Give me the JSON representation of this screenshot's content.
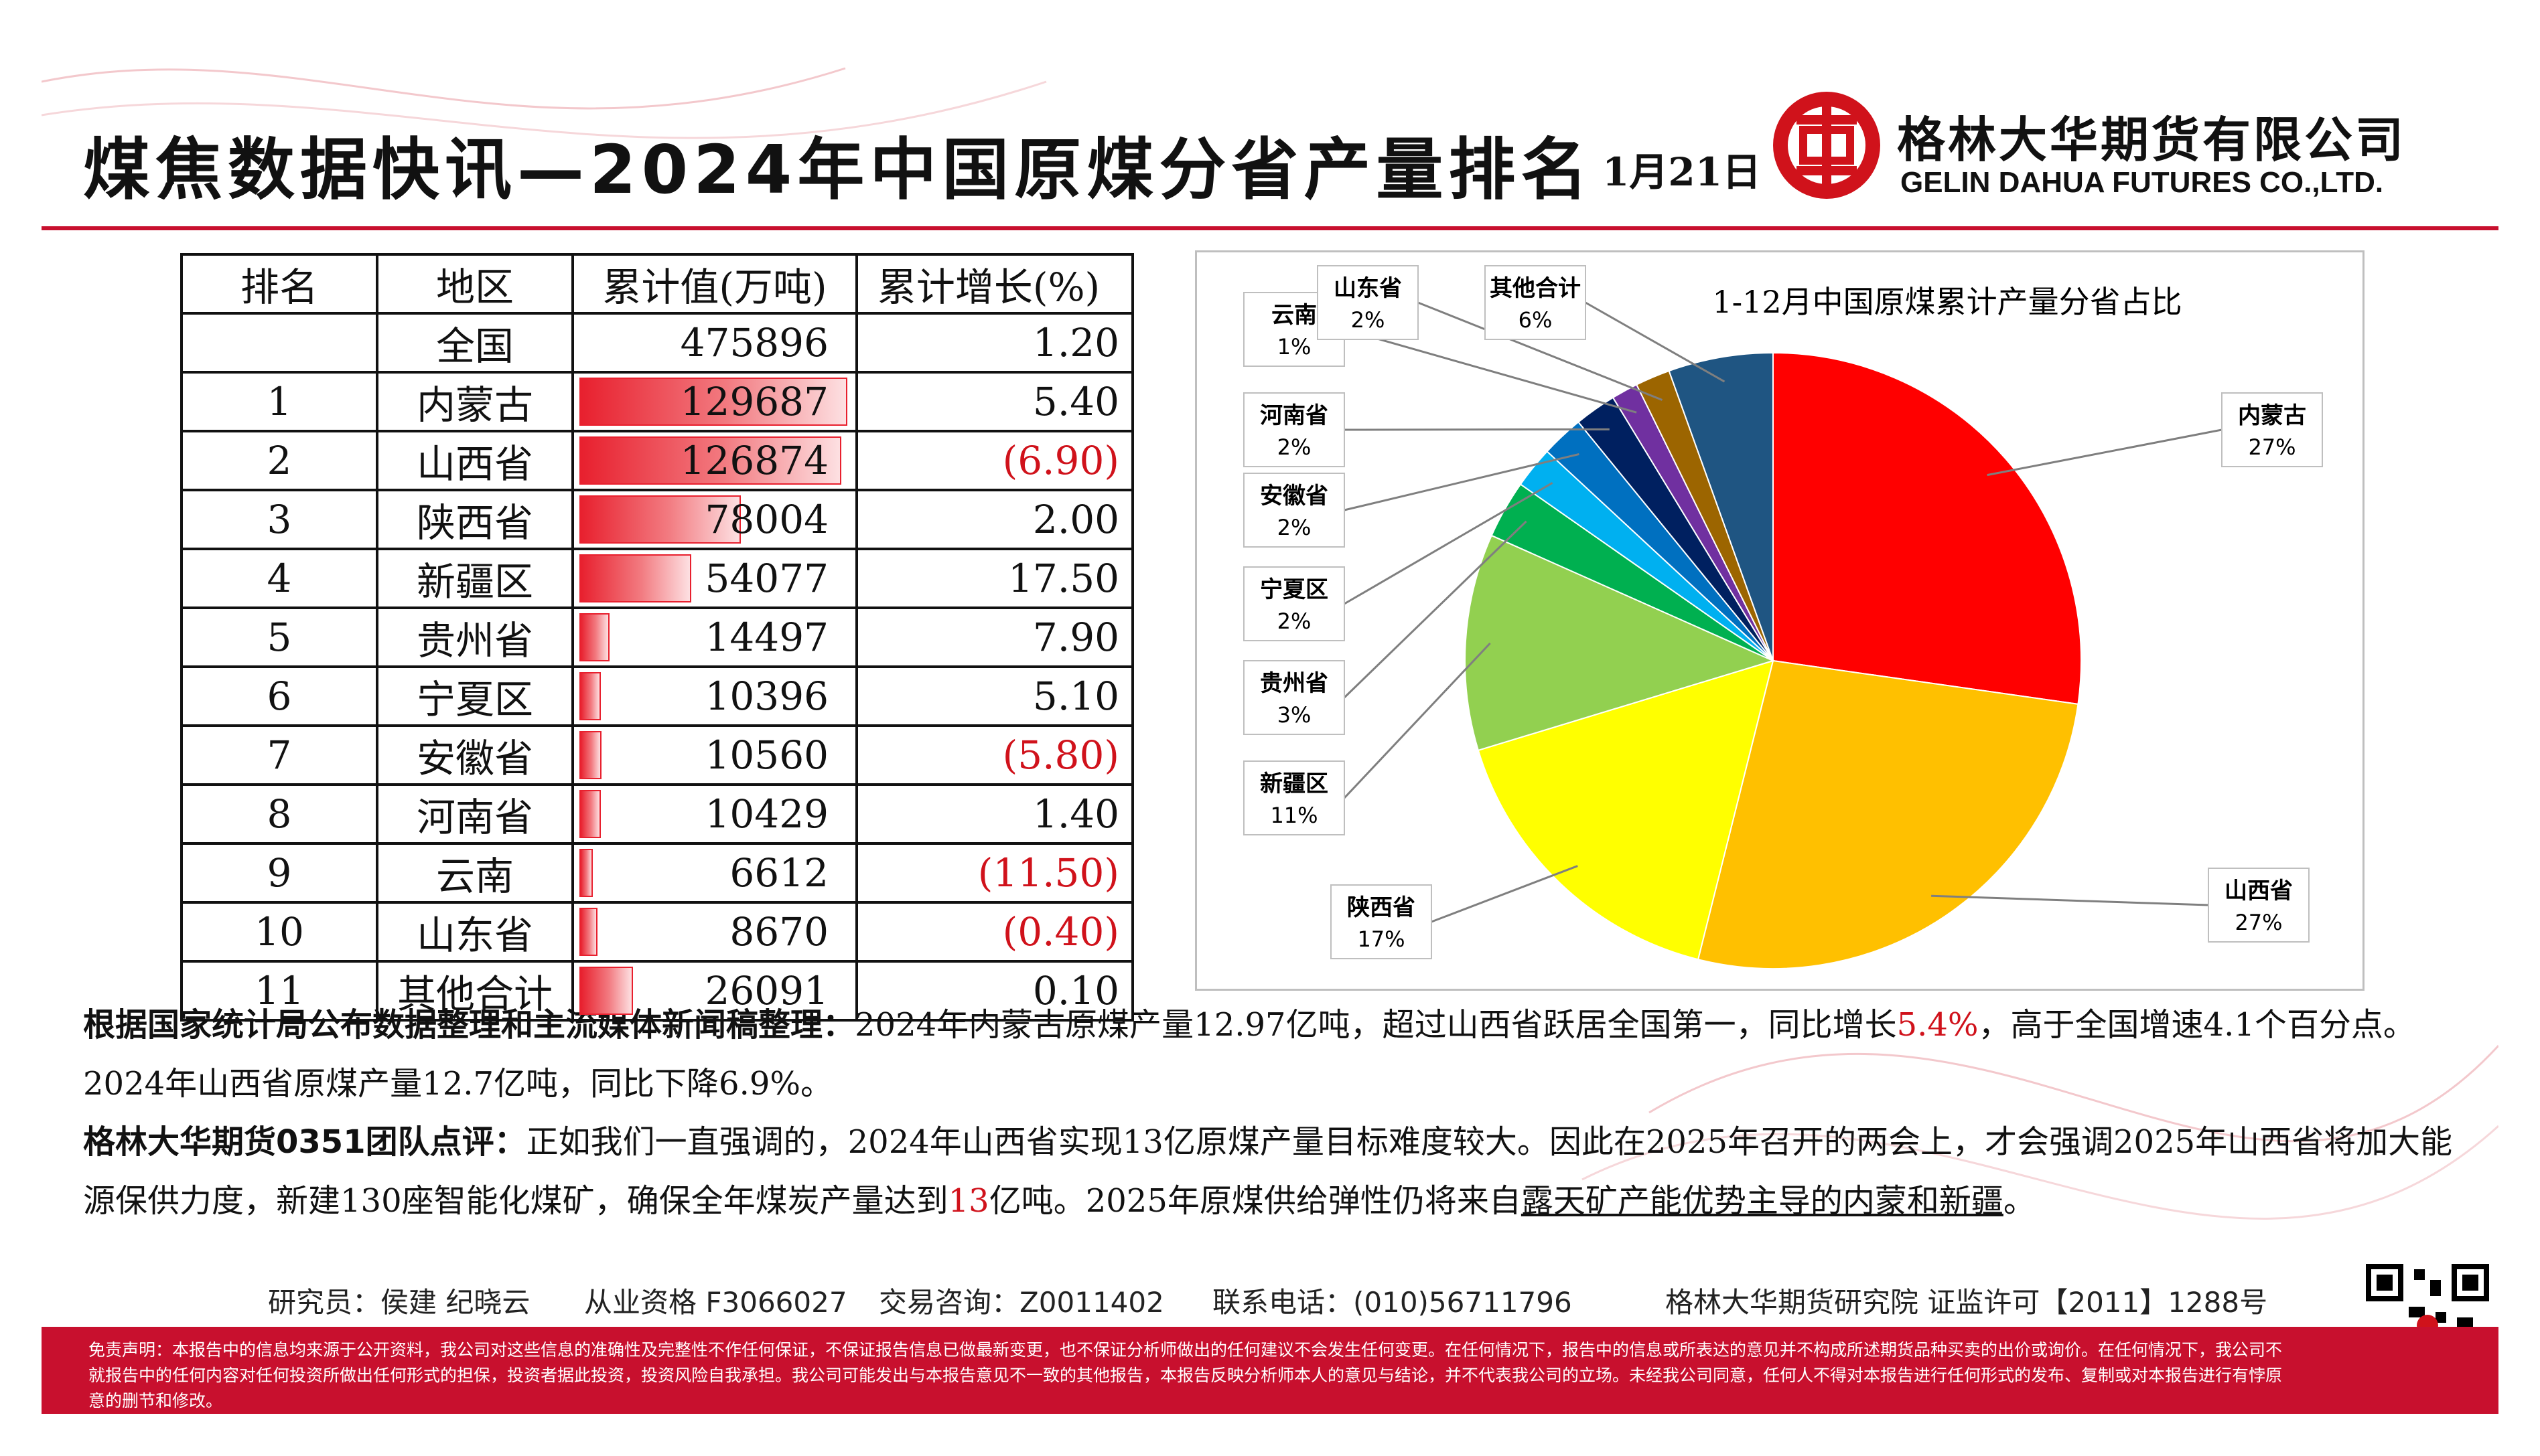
{
  "header": {
    "title": "煤焦数据快讯—2024年中国原煤分省产量排名",
    "date": "1月21日",
    "company_cn": "格林大华期货有限公司",
    "company_en": "GELIN DAHUA FUTURES CO.,LTD."
  },
  "table": {
    "headers": [
      "排名",
      "地区",
      "累计值(万吨)",
      "累计增长(%)"
    ],
    "rows": [
      {
        "rank": "",
        "region": "全国",
        "value": "475896",
        "growth": "1.20",
        "neg": false,
        "bar": 0
      },
      {
        "rank": "1",
        "region": "内蒙古",
        "value": "129687",
        "growth": "5.40",
        "neg": false,
        "bar": 129687
      },
      {
        "rank": "2",
        "region": "山西省",
        "value": "126874",
        "growth": "(6.90)",
        "neg": true,
        "bar": 126874
      },
      {
        "rank": "3",
        "region": "陕西省",
        "value": "78004",
        "growth": "2.00",
        "neg": false,
        "bar": 78004
      },
      {
        "rank": "4",
        "region": "新疆区",
        "value": "54077",
        "growth": "17.50",
        "neg": false,
        "bar": 54077
      },
      {
        "rank": "5",
        "region": "贵州省",
        "value": "14497",
        "growth": "7.90",
        "neg": false,
        "bar": 14497
      },
      {
        "rank": "6",
        "region": "宁夏区",
        "value": "10396",
        "growth": "5.10",
        "neg": false,
        "bar": 10396
      },
      {
        "rank": "7",
        "region": "安徽省",
        "value": "10560",
        "growth": "(5.80)",
        "neg": true,
        "bar": 10560
      },
      {
        "rank": "8",
        "region": "河南省",
        "value": "10429",
        "growth": "1.40",
        "neg": false,
        "bar": 10429
      },
      {
        "rank": "9",
        "region": "云南",
        "value": "6612",
        "growth": "(11.50)",
        "neg": true,
        "bar": 6612
      },
      {
        "rank": "10",
        "region": "山东省",
        "value": "8670",
        "growth": "(0.40)",
        "neg": true,
        "bar": 8670
      },
      {
        "rank": "11",
        "region": "其他合计",
        "value": "26091",
        "growth": "0.10",
        "neg": false,
        "bar": 26091
      }
    ]
  },
  "chart_data": {
    "type": "pie",
    "title": "1-12月中国原煤累计产量分省占比",
    "slices": [
      {
        "name": "内蒙古",
        "value": 129687,
        "label_pct": "27%",
        "color": "#ff0000"
      },
      {
        "name": "山西省",
        "value": 126874,
        "label_pct": "27%",
        "color": "#ffc000"
      },
      {
        "name": "陕西省",
        "value": 78004,
        "label_pct": "17%",
        "color": "#ffff00"
      },
      {
        "name": "新疆区",
        "value": 54077,
        "label_pct": "11%",
        "color": "#92d050"
      },
      {
        "name": "贵州省",
        "value": 14497,
        "label_pct": "3%",
        "color": "#00b050"
      },
      {
        "name": "宁夏区",
        "value": 10396,
        "label_pct": "2%",
        "color": "#00b0f0"
      },
      {
        "name": "安徽省",
        "value": 10560,
        "label_pct": "2%",
        "color": "#0070c0"
      },
      {
        "name": "河南省",
        "value": 10429,
        "label_pct": "2%",
        "color": "#002060"
      },
      {
        "name": "云南",
        "value": 6612,
        "label_pct": "1%",
        "color": "#7030a0"
      },
      {
        "name": "山东省",
        "value": 8670,
        "label_pct": "2%",
        "color": "#9c6500"
      },
      {
        "name": "其他合计",
        "value": 26091,
        "label_pct": "6%",
        "color": "#1f5582"
      }
    ]
  },
  "text": {
    "p1_bold": "根据国家统计局公布数据整理和主流媒体新闻稿整理：",
    "p1_a": "2024年内蒙古原煤产量12.97亿吨，超过山西省跃居全国第一，同比增长",
    "p1_red": "5.4%",
    "p1_b": "，高于全国增速4.1个百分点。2024年山西省原煤产量12.7亿吨，同比下降6.9%。",
    "p2_bold": "格林大华期货0351团队点评：",
    "p2_a": "正如我们一直强调的，2024年山西省实现13亿原煤产量目标难度较大。因此在2025年召开的两会上，才会强调2025年山西省将加大能源保供力度，新建130座智能化煤矿，确保全年煤炭产量达到",
    "p2_red": "13",
    "p2_b": "亿吨。2025年原煤供给弹性仍将来自",
    "p2_ul": "露天矿产能优势主导的内蒙和新疆",
    "p2_end": "。"
  },
  "footer": {
    "researchers": "研究员：侯建 纪晓云",
    "license": "从业资格 F3066027",
    "consult": "交易咨询：Z0011402",
    "phone": "联系电话：(010)56711796",
    "institute": "格林大华期货研究院 证监许可【2011】1288号",
    "disclaimer": "免责声明：本报告中的信息均来源于公开资料，我公司对这些信息的准确性及完整性不作任何保证，不保证报告信息已做最新变更，也不保证分析师做出的任何建议不会发生任何变更。在任何情况下，报告中的信息或所表达的意见并不构成所述期货品种买卖的出价或询价。在任何情况下，我公司不就报告中的任何内容对任何投资所做出任何形式的担保，投资者据此投资，投资风险自我承担。我公司可能发出与本报告意见不一致的其他报告，本报告反映分析师本人的意见与结论，并不代表我公司的立场。未经我公司同意，任何人不得对本报告进行任何形式的发布、复制或对本报告进行有悖原意的删节和修改。"
  }
}
